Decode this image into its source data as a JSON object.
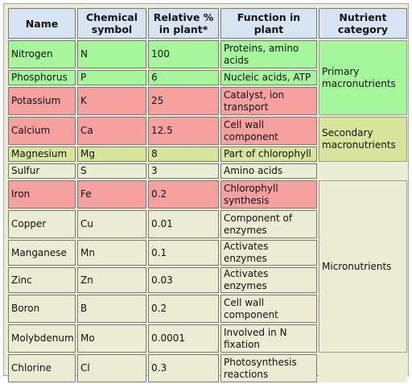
{
  "table": {
    "headers": [
      "Name",
      "Chemical symbol",
      "Relative % in plant*",
      "Function in plant",
      "Nutrient category"
    ],
    "rows": [
      {
        "name": "Nitrogen",
        "symbol": "N",
        "percent": "100",
        "function": "Proteins, amino acids",
        "color": "#a6f79b"
      },
      {
        "name": "Phosphorus",
        "symbol": "P",
        "percent": "6",
        "function": "Nucleic acids, ATP",
        "color": "#a6f79b"
      },
      {
        "name": "Potassium",
        "symbol": "K",
        "percent": "25",
        "function": "Catalyst, ion transport",
        "color": "#f6a0a0"
      },
      {
        "name": "Calcium",
        "symbol": "Ca",
        "percent": "12.5",
        "function": "Cell wall component",
        "color": "#f6a0a0"
      },
      {
        "name": "Magnesium",
        "symbol": "Mg",
        "percent": "8",
        "function": "Part of chlorophyll",
        "color": "#d8e59b"
      },
      {
        "name": "Sulfur",
        "symbol": "S",
        "percent": "3",
        "function": "Amino acids",
        "color": "#ecebd4"
      },
      {
        "name": "Iron",
        "symbol": "Fe",
        "percent": "0.2",
        "function": "Chlorophyll synthesis",
        "color": "#f6a0a0"
      },
      {
        "name": "Copper",
        "symbol": "Cu",
        "percent": "0.01",
        "function": "Component of enzymes",
        "color": "#ecebd4"
      },
      {
        "name": "Manganese",
        "symbol": "Mn",
        "percent": "0.1",
        "function": "Activates enzymes",
        "color": "#ecebd4"
      },
      {
        "name": "Zinc",
        "symbol": "Zn",
        "percent": "0.03",
        "function": "Activates enzymes",
        "color": "#ecebd4"
      },
      {
        "name": "Boron",
        "symbol": "B",
        "percent": "0.2",
        "function": "Cell wall component",
        "color": "#ecebd4"
      },
      {
        "name": "Molybdenum",
        "symbol": "Mo",
        "percent": "0.0001",
        "function": "Involved in N fixation",
        "color": "#ecebd4"
      },
      {
        "name": "Chlorine",
        "symbol": "Cl",
        "percent": "0.3",
        "function": "Photosynthesis reactions",
        "color": "#ecebd4"
      }
    ],
    "categories": {
      "primary": "Primary macronutrients",
      "secondary": "Secondary macronutrients",
      "micro": "Micronutrients"
    }
  }
}
